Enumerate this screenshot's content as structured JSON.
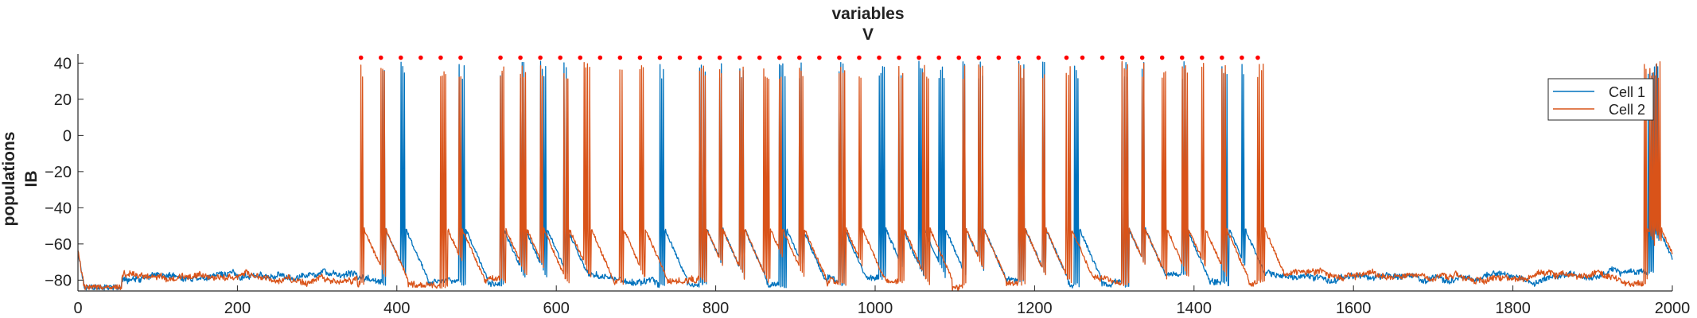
{
  "figure": {
    "title_line1": "variables",
    "title_line2": "V",
    "ylabel_line1": "populations",
    "ylabel_line2": "IB"
  },
  "chart_data": {
    "type": "line",
    "title": [
      "variables",
      "V"
    ],
    "xlabel": "",
    "ylabel": [
      "populations",
      "IB"
    ],
    "xlim": [
      0,
      2000
    ],
    "ylim": [
      -86,
      45
    ],
    "xticks": [
      0,
      200,
      400,
      600,
      800,
      1000,
      1200,
      1400,
      1600,
      1800,
      2000
    ],
    "yticks": [
      -80,
      -60,
      -40,
      -20,
      0,
      20,
      40
    ],
    "grid": false,
    "legend_position": "top-right",
    "baseline_mV": -78,
    "spike_peak_mV": 41,
    "series": [
      {
        "name": "Cell 1",
        "color": "#0072BD",
        "burst_times": [
          382,
          405,
          478,
          530,
          555,
          580,
          610,
          730,
          780,
          805,
          830,
          880,
          905,
          955,
          1005,
          1030,
          1055,
          1080,
          1110,
          1130,
          1180,
          1210,
          1250,
          1310,
          1335,
          1385,
          1435,
          1460,
          1970,
          1975
        ]
      },
      {
        "name": "Cell 2",
        "color": "#D95319",
        "burst_times": [
          355,
          380,
          455,
          478,
          530,
          555,
          580,
          610,
          635,
          680,
          705,
          780,
          805,
          830,
          860,
          880,
          905,
          955,
          980,
          1030,
          1060,
          1110,
          1130,
          1180,
          1210,
          1240,
          1310,
          1335,
          1360,
          1385,
          1410,
          1435,
          1480,
          1965,
          1972,
          1978
        ]
      }
    ],
    "marker_series": {
      "color": "#ff0000",
      "y": 43,
      "x": [
        355,
        380,
        405,
        430,
        455,
        480,
        530,
        555,
        580,
        605,
        630,
        655,
        680,
        705,
        730,
        755,
        780,
        805,
        830,
        855,
        880,
        905,
        930,
        955,
        980,
        1005,
        1030,
        1055,
        1080,
        1105,
        1130,
        1155,
        1180,
        1205,
        1240,
        1260,
        1285,
        1310,
        1335,
        1360,
        1385,
        1410,
        1435,
        1460,
        1480
      ]
    }
  }
}
